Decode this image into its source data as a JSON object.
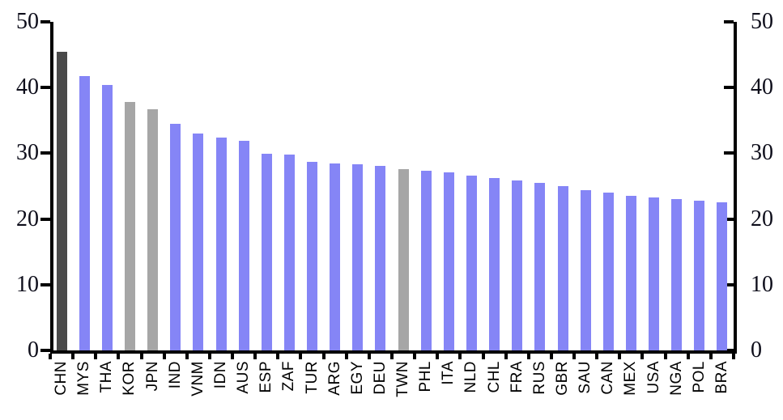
{
  "chart_data": {
    "type": "bar",
    "title": "",
    "xlabel": "",
    "ylabel": "",
    "categories": [
      "CHN",
      "MYS",
      "THA",
      "KOR",
      "JPN",
      "IND",
      "VNM",
      "IDN",
      "AUS",
      "ESP",
      "ZAF",
      "TUR",
      "ARG",
      "EGY",
      "DEU",
      "TWN",
      "PHL",
      "ITA",
      "NLD",
      "CHL",
      "FRA",
      "RUS",
      "GBR",
      "SAU",
      "CAN",
      "MEX",
      "USA",
      "NGA",
      "POL",
      "BRA"
    ],
    "values": [
      45.4,
      41.7,
      40.4,
      37.8,
      36.7,
      34.5,
      33.0,
      32.4,
      31.9,
      29.9,
      29.8,
      28.7,
      28.5,
      28.3,
      28.1,
      27.6,
      27.3,
      27.1,
      26.6,
      26.2,
      25.9,
      25.5,
      25.0,
      24.4,
      24.0,
      23.5,
      23.3,
      23.0,
      22.8,
      22.5
    ],
    "bar_styles": [
      "dark",
      "purple",
      "purple",
      "gray",
      "gray",
      "purple",
      "purple",
      "purple",
      "purple",
      "purple",
      "purple",
      "purple",
      "purple",
      "purple",
      "purple",
      "gray",
      "purple",
      "purple",
      "purple",
      "purple",
      "purple",
      "purple",
      "purple",
      "purple",
      "purple",
      "purple",
      "purple",
      "purple",
      "purple",
      "purple"
    ],
    "colors": {
      "purple": "#8585f6",
      "dark": "#4a4a4a",
      "gray": "#a6a6a6",
      "axis": "#000000"
    },
    "ylim": [
      0,
      50
    ],
    "yticks": [
      0,
      10,
      20,
      30,
      40,
      50
    ],
    "left_axis_labels": [
      "0",
      "10",
      "20",
      "30",
      "40",
      "50"
    ],
    "right_axis_labels": [
      "0",
      "10",
      "20",
      "30",
      "40",
      "50"
    ],
    "grid": false,
    "legend": null
  }
}
